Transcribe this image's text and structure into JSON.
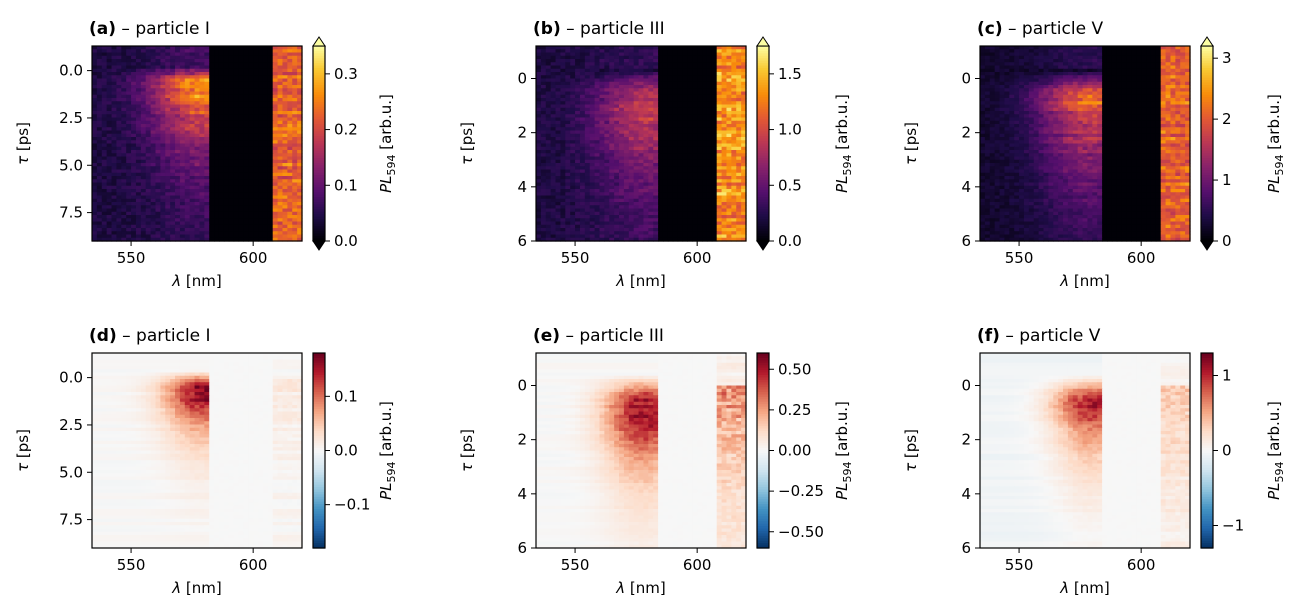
{
  "figure": {
    "xlabel_var": "λ",
    "xlabel_unit": " [nm]",
    "ylabel_var": "τ",
    "ylabel_unit": " [ps]",
    "cbar_label_main": "PL",
    "cbar_label_sub": "594",
    "cbar_label_unit": " [arb.u.]"
  },
  "chart_data": [
    {
      "type": "heatmap",
      "id": "a",
      "letter": "(a)",
      "title_rest": " – particle I",
      "colormap": "inferno",
      "cbar_extend": "both",
      "x_range": [
        534,
        620
      ],
      "y_range": [
        -1.3,
        9.0
      ],
      "y_inverted": true,
      "x_ticks": [
        550,
        600
      ],
      "x_tick_labels": [
        "550",
        "600"
      ],
      "y_ticks": [
        0.0,
        2.5,
        5.0,
        7.5
      ],
      "y_tick_labels": [
        "0.0",
        "2.5",
        "5.0",
        "7.5"
      ],
      "c_range": [
        0,
        0.35
      ],
      "c_ticks": [
        0.0,
        0.1,
        0.2,
        0.3
      ],
      "c_tick_labels": [
        "0.0",
        "0.1",
        "0.2",
        "0.3"
      ],
      "features": {
        "emission_peak_nm": 580,
        "emission_peak_ps": 1.2,
        "emission_peak_value": 0.26,
        "gap_nm": [
          583,
          607
        ],
        "right_band_value": 0.25,
        "background_value": 0.04
      }
    },
    {
      "type": "heatmap",
      "id": "b",
      "letter": "(b)",
      "title_rest": " – particle III",
      "colormap": "inferno",
      "cbar_extend": "both",
      "x_range": [
        534,
        620
      ],
      "y_range": [
        -1.2,
        6.0
      ],
      "y_inverted": true,
      "x_ticks": [
        550,
        600
      ],
      "x_tick_labels": [
        "550",
        "600"
      ],
      "y_ticks": [
        0,
        2,
        4,
        6
      ],
      "y_tick_labels": [
        "0",
        "2",
        "4",
        "6"
      ],
      "c_range": [
        0,
        1.75
      ],
      "c_ticks": [
        0.0,
        0.5,
        1.0,
        1.5
      ],
      "c_tick_labels": [
        "0.0",
        "0.5",
        "1.0",
        "1.5"
      ],
      "features": {
        "emission_peak_nm": 580,
        "emission_peak_ps": 1.5,
        "emission_peak_value": 0.75,
        "gap_nm": [
          584,
          607
        ],
        "right_band_value": 1.45,
        "background_value": 0.2
      }
    },
    {
      "type": "heatmap",
      "id": "c",
      "letter": "(c)",
      "title_rest": " – particle V",
      "colormap": "inferno",
      "cbar_extend": "both",
      "x_range": [
        534,
        620
      ],
      "y_range": [
        -1.2,
        6.0
      ],
      "y_inverted": true,
      "x_ticks": [
        550,
        600
      ],
      "x_tick_labels": [
        "550",
        "600"
      ],
      "y_ticks": [
        0,
        2,
        4,
        6
      ],
      "y_tick_labels": [
        "0",
        "2",
        "4",
        "6"
      ],
      "c_range": [
        0,
        3.2
      ],
      "c_ticks": [
        0,
        1,
        2,
        3
      ],
      "c_tick_labels": [
        "0",
        "1",
        "2",
        "3"
      ],
      "features": {
        "emission_peak_nm": 580,
        "emission_peak_ps": 1.0,
        "emission_peak_value": 2.0,
        "gap_nm": [
          584,
          607
        ],
        "right_band_value": 2.3,
        "background_value": 0.25
      }
    },
    {
      "type": "heatmap",
      "id": "d",
      "letter": "(d)",
      "title_rest": " – particle I",
      "colormap": "RdBu_r",
      "cbar_extend": "neither",
      "x_range": [
        534,
        620
      ],
      "y_range": [
        -1.3,
        9.0
      ],
      "y_inverted": true,
      "x_ticks": [
        550,
        600
      ],
      "x_tick_labels": [
        "550",
        "600"
      ],
      "y_ticks": [
        0.0,
        2.5,
        5.0,
        7.5
      ],
      "y_tick_labels": [
        "0.0",
        "2.5",
        "5.0",
        "7.5"
      ],
      "c_range": [
        -0.18,
        0.18
      ],
      "c_ticks": [
        -0.1,
        0.0,
        0.1
      ],
      "c_tick_labels": [
        "−0.1",
        "0.0",
        "0.1"
      ],
      "features": {
        "emission_peak_nm": 580,
        "emission_peak_ps": 1.2,
        "emission_peak_value": 0.16,
        "gap_nm": [
          583,
          607
        ],
        "right_band_value": 0.02,
        "background_value": 0.0
      }
    },
    {
      "type": "heatmap",
      "id": "e",
      "letter": "(e)",
      "title_rest": " – particle III",
      "colormap": "RdBu_r",
      "cbar_extend": "neither",
      "x_range": [
        534,
        620
      ],
      "y_range": [
        -1.2,
        6.0
      ],
      "y_inverted": true,
      "x_ticks": [
        550,
        600
      ],
      "x_tick_labels": [
        "550",
        "600"
      ],
      "y_ticks": [
        0,
        2,
        4,
        6
      ],
      "y_tick_labels": [
        "0",
        "2",
        "4",
        "6"
      ],
      "c_range": [
        -0.6,
        0.6
      ],
      "c_ticks": [
        -0.5,
        -0.25,
        0.0,
        0.25,
        0.5
      ],
      "c_tick_labels": [
        "−0.50",
        "−0.25",
        "0.00",
        "0.25",
        "0.50"
      ],
      "features": {
        "emission_peak_nm": 578,
        "emission_peak_ps": 1.5,
        "emission_peak_value": 0.5,
        "gap_nm": [
          584,
          607
        ],
        "right_band_value": 0.3,
        "background_value": 0.0
      }
    },
    {
      "type": "heatmap",
      "id": "f",
      "letter": "(f)",
      "title_rest": " – particle V",
      "colormap": "RdBu_r",
      "cbar_extend": "neither",
      "x_range": [
        534,
        620
      ],
      "y_range": [
        -1.2,
        6.0
      ],
      "y_inverted": true,
      "x_ticks": [
        550,
        600
      ],
      "x_tick_labels": [
        "550",
        "600"
      ],
      "y_ticks": [
        0,
        2,
        4,
        6
      ],
      "y_tick_labels": [
        "0",
        "2",
        "4",
        "6"
      ],
      "c_range": [
        -1.3,
        1.3
      ],
      "c_ticks": [
        -1,
        0,
        1
      ],
      "c_tick_labels": [
        "−1",
        "0",
        "1"
      ],
      "features": {
        "emission_peak_nm": 580,
        "emission_peak_ps": 0.8,
        "emission_peak_value": 1.1,
        "gap_nm": [
          584,
          607
        ],
        "right_band_value": 0.35,
        "background_value": -0.05
      }
    }
  ]
}
